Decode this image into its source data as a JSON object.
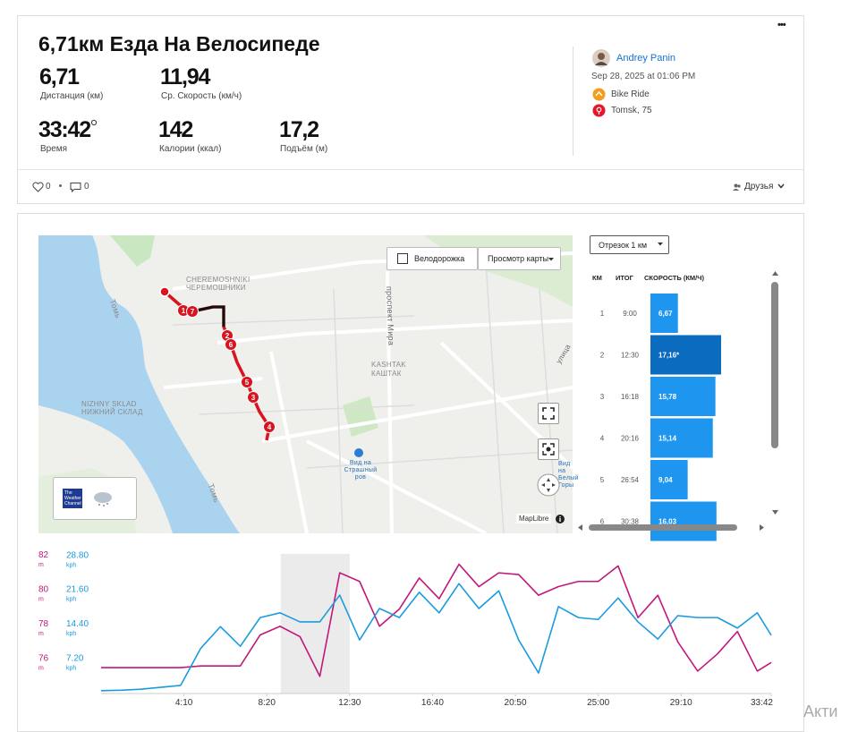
{
  "header": {
    "title": "6,71км Езда На Велосипеде",
    "more": "•••"
  },
  "stats": [
    {
      "value": "6,71",
      "label": "Дистанция (км)"
    },
    {
      "value": "11,94",
      "label": "Ср. Скорость (км/ч)"
    },
    {
      "value": "33:42",
      "label": "Время"
    },
    {
      "value": "142",
      "label": "Калории (ккал)"
    },
    {
      "value": "17,2",
      "label": "Подъём (м)"
    }
  ],
  "athlete": {
    "name": "Andrey Panin",
    "date": "Sep 28, 2025 at 01:06 PM",
    "activity": "Bike Ride",
    "location": "Tomsk, 75"
  },
  "social": {
    "likes": "0",
    "comments": "0",
    "visibility": "Друзья"
  },
  "map": {
    "bike_lane": "Велодорожка",
    "view": "Просмотр карты",
    "attribution": "MapLibre",
    "weather": "The Weather Channel",
    "labels": [
      "CHEREMOSHNIKI",
      "ЧЕРЕМОШНИКИ",
      "Томь",
      "проспект Мира",
      "KASHTAK",
      "КАШТАК",
      "NIZHNY SKLAD",
      "НИЖНИЙ СКЛАД",
      "Томь",
      "Вид на Страшный ров",
      "улица",
      "Вид на Белый Горы"
    ],
    "markers": [
      "1",
      "7",
      "2",
      "6",
      "5",
      "3",
      "4"
    ]
  },
  "splits": {
    "selector": "Отрезок 1 км",
    "headers": [
      "КМ",
      "ИТОГ",
      "СКОРОСТЬ (КМ/Ч)"
    ],
    "totals": [
      "9:00",
      "12:30",
      "16:18",
      "20:16",
      "26:54",
      "30:38"
    ]
  },
  "chart_data": [
    {
      "type": "bar",
      "orientation": "horizontal",
      "categories": [
        "1",
        "2",
        "3",
        "4",
        "5",
        "6"
      ],
      "values": [
        6.67,
        17.16,
        15.78,
        15.14,
        9.04,
        16.03
      ],
      "value_labels": [
        "6,67",
        "17,16*",
        "15,78",
        "15,14",
        "9,04",
        "16,03"
      ],
      "color": "#1e96f0",
      "selected_category": "2",
      "selected_color": "#0b6bbf"
    },
    {
      "type": "line",
      "x": [
        0,
        60,
        120,
        180,
        240,
        300,
        360,
        420,
        480,
        540,
        600,
        660,
        720,
        780,
        840,
        900,
        960,
        1020,
        1080,
        1140,
        1200,
        1260,
        1320,
        1380,
        1440,
        1500,
        1560,
        1620,
        1680,
        1740,
        1800,
        1860,
        1920,
        1980,
        2022
      ],
      "xlim": [
        0,
        2022
      ],
      "xticks": [
        {
          "value": 250,
          "label": "4:10"
        },
        {
          "value": 500,
          "label": "8:20"
        },
        {
          "value": 750,
          "label": "12:30"
        },
        {
          "value": 1000,
          "label": "16:40"
        },
        {
          "value": 1250,
          "label": "20:50"
        },
        {
          "value": 1500,
          "label": "25:00"
        },
        {
          "value": 1750,
          "label": "29:10"
        },
        {
          "value": 2022,
          "label": "33:42"
        }
      ],
      "ylim": [
        74,
        82.2
      ],
      "yticks": [
        76,
        78,
        80,
        82
      ],
      "y_unit": "m",
      "y_color": "#c2187a",
      "y2lim": [
        0,
        29.6
      ],
      "y2ticks": [
        {
          "value": 7.2,
          "label": "7.20"
        },
        {
          "value": 14.4,
          "label": "14.40"
        },
        {
          "value": 21.6,
          "label": "21.60"
        },
        {
          "value": 28.8,
          "label": "28.80"
        }
      ],
      "y2_unit": "kph",
      "y2_color": "#1a9be0",
      "highlight": [
        542,
        750
      ],
      "grid": false,
      "series": [
        {
          "color": "#c2187a",
          "values": [
            75.5,
            75.5,
            75.5,
            75.5,
            75.5,
            75.6,
            75.6,
            75.6,
            77.4,
            77.9,
            77.3,
            75.0,
            81.0,
            80.5,
            77.9,
            78.9,
            80.7,
            79.5,
            81.5,
            80.2,
            81.0,
            80.9,
            79.7,
            80.2,
            80.5,
            80.5,
            81.4,
            78.4,
            79.7,
            77.0,
            75.3,
            76.3,
            77.6,
            75.3,
            75.8
          ]
        },
        {
          "color": "#1a9be0",
          "axis": "y2",
          "values": [
            0.6,
            0.7,
            0.9,
            1.3,
            1.7,
            9.4,
            14.0,
            9.9,
            15.9,
            16.9,
            15.0,
            15.0,
            20.6,
            11.2,
            17.8,
            15.9,
            21.2,
            16.9,
            23.0,
            17.8,
            21.5,
            11.2,
            4.3,
            18.2,
            15.9,
            15.5,
            20.0,
            15.0,
            11.4,
            16.3,
            15.9,
            15.9,
            13.7,
            16.9,
            12.2
          ]
        }
      ]
    }
  ],
  "corner_text": "Акти"
}
